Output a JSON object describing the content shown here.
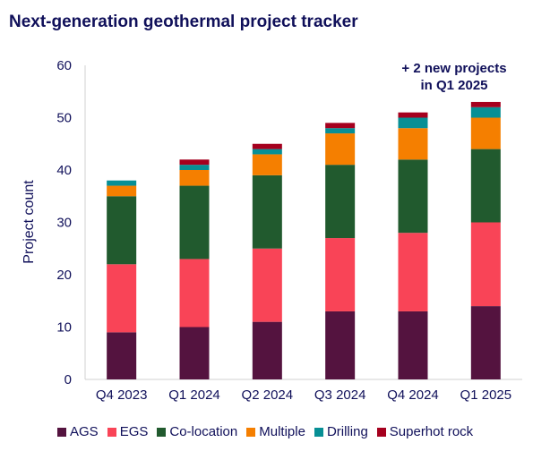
{
  "chart_data": {
    "type": "bar",
    "stacked": true,
    "title": "Next-generation geothermal project tracker",
    "ylabel": "Project count",
    "xlabel": "",
    "ylim": [
      0,
      60
    ],
    "yticks": [
      "0",
      "10",
      "20",
      "30",
      "40",
      "50",
      "60"
    ],
    "categories": [
      "Q4 2023",
      "Q1 2024",
      "Q2 2024",
      "Q3 2024",
      "Q4 2024",
      "Q1 2025"
    ],
    "series": [
      {
        "name": "AGS",
        "color": "#54133f",
        "values": [
          9,
          10,
          11,
          13,
          13,
          14
        ]
      },
      {
        "name": "EGS",
        "color": "#f94457",
        "values": [
          13,
          13,
          14,
          14,
          15,
          16
        ]
      },
      {
        "name": "Co-location",
        "color": "#215a2e",
        "values": [
          13,
          14,
          14,
          14,
          14,
          14
        ]
      },
      {
        "name": "Multiple",
        "color": "#f57f00",
        "values": [
          2,
          3,
          4,
          6,
          6,
          6
        ]
      },
      {
        "name": "Drilling",
        "color": "#078f95",
        "values": [
          1,
          1,
          1,
          1,
          2,
          2
        ]
      },
      {
        "name": "Superhot rock",
        "color": "#a5001e",
        "values": [
          0,
          1,
          1,
          1,
          1,
          1
        ]
      }
    ],
    "annotation": [
      "+ 2 new projects",
      "in Q1 2025"
    ],
    "legend_position": "bottom",
    "grid": false
  }
}
